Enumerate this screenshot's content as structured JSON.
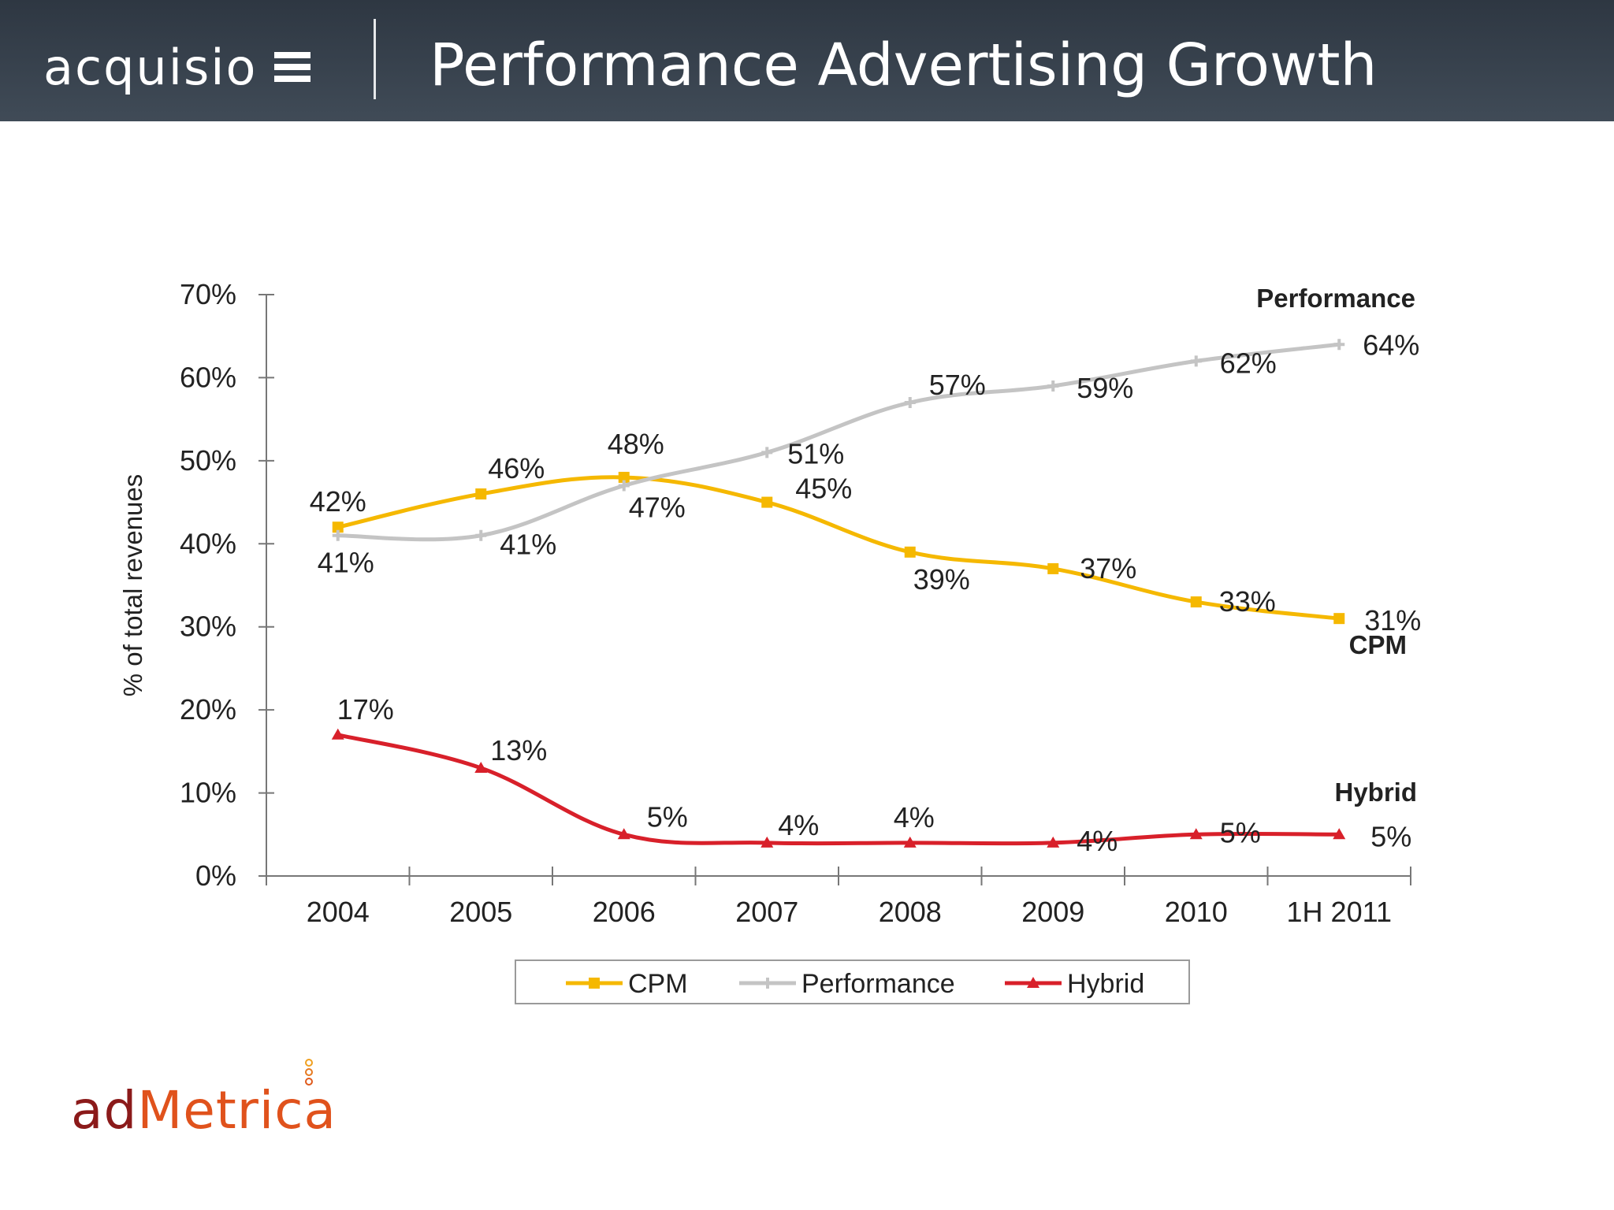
{
  "header": {
    "logo_text": "acquisio",
    "title": "Performance Advertising Growth"
  },
  "footer": {
    "brand_ad": "ad",
    "brand_metrica": "Metrica"
  },
  "colors": {
    "cpm": "#f5b800",
    "performance": "#c4c4c4",
    "hybrid": "#d8202a",
    "axis": "#777777",
    "header": "#2e3742",
    "brand_ad": "#8b1a1a",
    "brand_metrica": "#e0521c"
  },
  "chart_data": {
    "type": "line",
    "ylabel": "% of total revenues",
    "xlabel": "",
    "categories": [
      "2004",
      "2005",
      "2006",
      "2007",
      "2008",
      "2009",
      "2010",
      "1H 2011"
    ],
    "y_ticks": [
      "0%",
      "10%",
      "20%",
      "30%",
      "40%",
      "50%",
      "60%",
      "70%"
    ],
    "ylim": [
      0,
      70
    ],
    "grid": false,
    "legend_position": "bottom",
    "series": [
      {
        "name": "CPM",
        "end_label": "CPM",
        "values": [
          42,
          46,
          48,
          45,
          39,
          37,
          33,
          31
        ],
        "labels": [
          "42%",
          "46%",
          "48%",
          "45%",
          "39%",
          "37%",
          "33%",
          "31%"
        ],
        "color": "#f5b800",
        "marker": "square"
      },
      {
        "name": "Performance",
        "end_label": "Performance",
        "values": [
          41,
          41,
          47,
          51,
          57,
          59,
          62,
          64
        ],
        "labels": [
          "41%",
          "41%",
          "47%",
          "51%",
          "57%",
          "59%",
          "62%",
          "64%"
        ],
        "color": "#c4c4c4",
        "marker": "plus"
      },
      {
        "name": "Hybrid",
        "end_label": "Hybrid",
        "values": [
          17,
          13,
          5,
          4,
          4,
          4,
          5,
          5
        ],
        "labels": [
          "17%",
          "13%",
          "5%",
          "4%",
          "4%",
          "4%",
          "5%",
          "5%"
        ],
        "color": "#d8202a",
        "marker": "triangle"
      }
    ]
  }
}
